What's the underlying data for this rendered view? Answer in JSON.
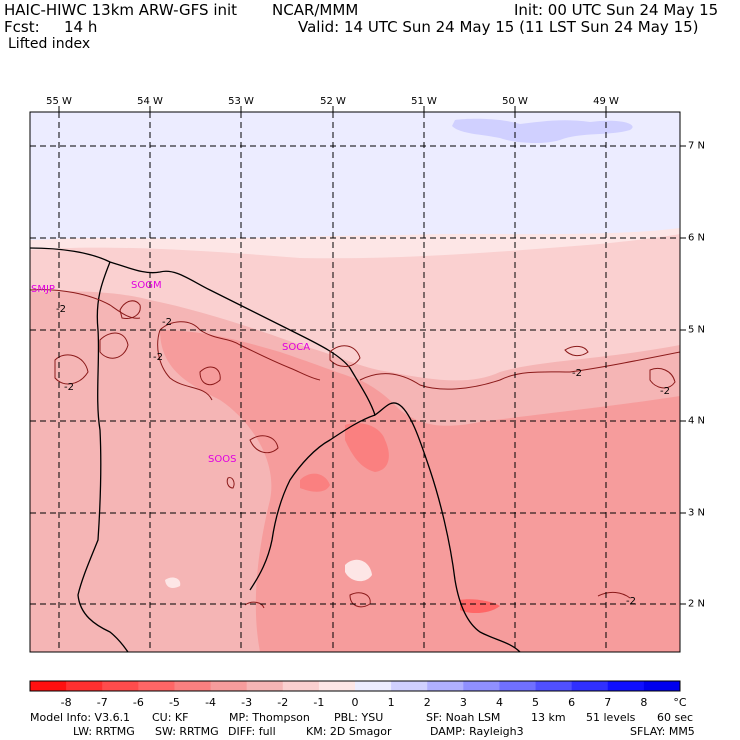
{
  "header": {
    "line1_left": "HAIC-HIWC 13km ARW-GFS init",
    "line1_mid": "NCAR/MMM",
    "line1_right": "Init: 00 UTC Sun 24 May 15",
    "fcst_label": "Fcst:",
    "fcst_value": "14 h",
    "valid": "Valid: 14 UTC Sun 24 May 15 (11 LST Sun 24 May 15)",
    "field": "Lifted index"
  },
  "map": {
    "lon_labels": [
      "55 W",
      "54 W",
      "53 W",
      "52 W",
      "51 W",
      "50 W",
      "49 W"
    ],
    "lat_labels": [
      "7 N",
      "6 N",
      "5 N",
      "4 N",
      "3 N",
      "2 N"
    ],
    "stations": [
      "SMJP",
      "SOGM",
      "SOCA",
      "SOOS"
    ],
    "contour_labels": [
      "-2",
      "-2",
      "-2",
      "-2",
      "-2",
      "-2",
      "-2"
    ]
  },
  "colorbar": {
    "ticks": [
      "-8",
      "-7",
      "-6",
      "-5",
      "-4",
      "-3",
      "-2",
      "-1",
      "0",
      "1",
      "2",
      "3",
      "4",
      "5",
      "6",
      "7",
      "8"
    ],
    "unit": "°C",
    "colors": [
      "#ff1010",
      "#ff3030",
      "#ff4c4c",
      "#ff6666",
      "#fa8080",
      "#f69c9c",
      "#f5b5b5",
      "#fad0d0",
      "#fde6e6",
      "#ececff",
      "#d0d0ff",
      "#b0b0ff",
      "#9090ff",
      "#7070ff",
      "#5050ff",
      "#3030ff",
      "#1010ff",
      "#0000ee"
    ]
  },
  "footer": {
    "line1": [
      {
        "text": "Model Info: V3.6.1"
      },
      {
        "text": "CU: KF"
      },
      {
        "text": "MP: Thompson"
      },
      {
        "text": "PBL: YSU"
      },
      {
        "text": "SF: Noah LSM"
      },
      {
        "text": "13 km"
      },
      {
        "text": "51 levels"
      },
      {
        "text": "60 sec"
      }
    ],
    "line2": [
      {
        "text": "LW: RRTMG"
      },
      {
        "text": "SW: RRTMG"
      },
      {
        "text": "DIFF: full"
      },
      {
        "text": "KM: 2D Smagor"
      },
      {
        "text": "DAMP: Rayleigh3"
      },
      {
        "text": "SFLAY: MM5"
      }
    ]
  }
}
